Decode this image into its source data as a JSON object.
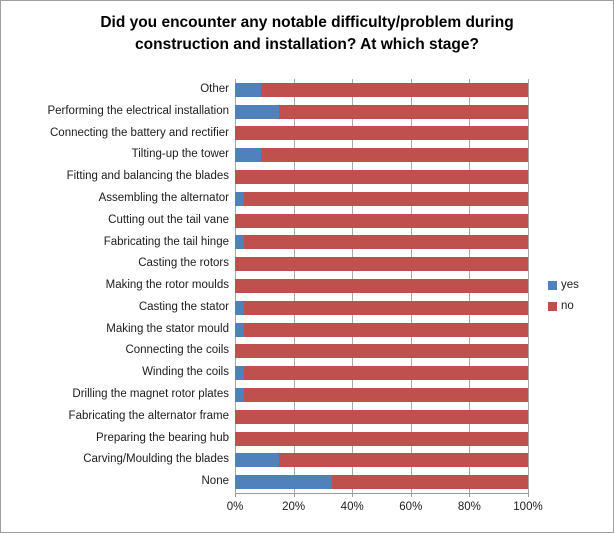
{
  "title": {
    "line1": "Did you encounter any notable difficulty/problem during",
    "line2": "construction and installation? At which stage?"
  },
  "colors": {
    "yes": "#4F81BD",
    "no": "#C0504D",
    "gridline": "#A8A8A8",
    "axis": "#9B9B9B"
  },
  "chart_data": {
    "type": "bar",
    "orientation": "horizontal",
    "stacked": true,
    "title": "Did you encounter any notable difficulty/problem during construction and installation? At which stage?",
    "categories": [
      "Other",
      "Performing the electrical installation",
      "Connecting the battery and rectifier",
      "Tilting-up the tower",
      "Fitting and balancing the blades",
      "Assembling the alternator",
      "Cutting out the tail vane",
      "Fabricating the tail hinge",
      "Casting the rotors",
      "Making the rotor moulds",
      "Casting the stator",
      "Making the stator mould",
      "Connecting the coils",
      "Winding the coils",
      "Drilling the magnet rotor plates",
      "Fabricating the alternator frame",
      "Preparing the bearing hub",
      "Carving/Moulding the blades",
      "None"
    ],
    "series": [
      {
        "name": "yes",
        "color": "#4F81BD",
        "values": [
          9,
          15,
          0,
          9,
          0,
          3,
          0,
          3,
          0,
          0,
          3,
          3,
          0,
          3,
          3,
          0,
          0,
          15,
          33
        ]
      },
      {
        "name": "no",
        "color": "#C0504D",
        "values": [
          91,
          85,
          100,
          91,
          100,
          97,
          100,
          97,
          100,
          100,
          97,
          97,
          100,
          97,
          97,
          100,
          100,
          85,
          67
        ]
      }
    ],
    "x_ticks": [
      "0%",
      "20%",
      "40%",
      "60%",
      "80%",
      "100%"
    ],
    "xlim": [
      0,
      100
    ],
    "grid": true,
    "legend_position": "right"
  }
}
